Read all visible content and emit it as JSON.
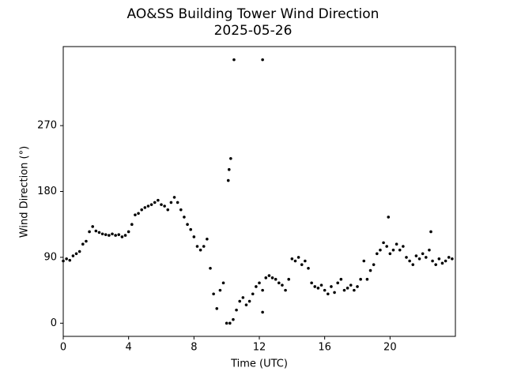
{
  "chart_data": {
    "type": "scatter",
    "title": "AO&SS Building Tower Wind Direction",
    "subtitle": "2025-05-26",
    "xlabel": "Time (UTC)",
    "ylabel": "Wind Direction (°)",
    "color": "#000000",
    "xlim": [
      0,
      24
    ],
    "ylim": [
      -18,
      378
    ],
    "xticks": [
      0,
      4,
      8,
      12,
      16,
      20
    ],
    "yticks": [
      0,
      90,
      180,
      270
    ],
    "x": [
      0,
      0.2,
      0.4,
      0.6,
      0.8,
      1.0,
      1.2,
      1.4,
      1.6,
      1.8,
      2.0,
      2.2,
      2.4,
      2.6,
      2.8,
      3.0,
      3.2,
      3.4,
      3.6,
      3.8,
      4.0,
      4.2,
      4.4,
      4.6,
      4.8,
      5.0,
      5.2,
      5.4,
      5.6,
      5.8,
      6.0,
      6.2,
      6.4,
      6.6,
      6.8,
      7.0,
      7.2,
      7.4,
      7.6,
      7.8,
      8.0,
      8.2,
      8.4,
      8.6,
      8.8,
      9.0,
      9.2,
      9.4,
      9.6,
      9.8,
      10.0,
      10.2,
      10.4,
      10.6,
      10.8,
      11.0,
      11.2,
      11.4,
      11.6,
      11.8,
      12.0,
      12.2,
      12.4,
      12.6,
      12.8,
      13.0,
      13.2,
      13.4,
      13.6,
      13.8,
      14.0,
      14.2,
      14.4,
      14.6,
      14.8,
      15.0,
      15.2,
      15.4,
      15.6,
      15.8,
      16.0,
      16.2,
      16.4,
      16.6,
      16.8,
      17.0,
      17.2,
      17.4,
      17.6,
      17.8,
      18.0,
      18.2,
      18.4,
      18.6,
      18.8,
      19.0,
      19.2,
      19.4,
      19.6,
      19.8,
      20.0,
      20.2,
      20.4,
      20.6,
      20.8,
      21.0,
      21.2,
      21.4,
      21.6,
      21.8,
      22.0,
      22.2,
      22.4,
      22.6,
      22.8,
      23.0,
      23.2,
      23.4,
      23.6,
      23.8,
      10.1,
      10.15,
      10.25,
      10.45,
      12.2,
      19.9,
      12.2,
      22.5
    ],
    "values": [
      85,
      88,
      86,
      92,
      95,
      98,
      108,
      112,
      125,
      132,
      126,
      124,
      122,
      121,
      120,
      122,
      120,
      121,
      118,
      120,
      125,
      135,
      148,
      150,
      155,
      158,
      160,
      162,
      165,
      168,
      162,
      160,
      155,
      165,
      172,
      165,
      155,
      145,
      135,
      128,
      118,
      105,
      100,
      105,
      115,
      75,
      40,
      20,
      45,
      55,
      0,
      0,
      5,
      18,
      30,
      35,
      25,
      30,
      40,
      50,
      55,
      45,
      62,
      65,
      62,
      60,
      55,
      52,
      45,
      60,
      88,
      85,
      90,
      80,
      85,
      75,
      55,
      50,
      48,
      52,
      45,
      40,
      50,
      42,
      55,
      60,
      45,
      48,
      52,
      45,
      50,
      60,
      85,
      60,
      72,
      80,
      95,
      100,
      110,
      105,
      95,
      100,
      108,
      100,
      105,
      90,
      85,
      80,
      92,
      88,
      95,
      90,
      100,
      85,
      80,
      88,
      82,
      85,
      90,
      88,
      195,
      210,
      225,
      360,
      360,
      145,
      15,
      125
    ]
  }
}
